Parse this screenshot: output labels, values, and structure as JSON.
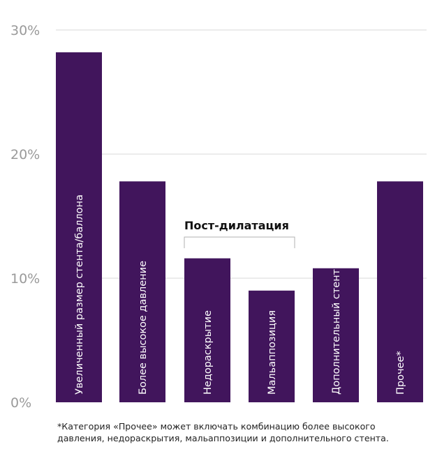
{
  "chart_data": {
    "type": "bar",
    "categories": [
      "Увеличенный размер стента/баллона",
      "Более высокое давление",
      "Недораскрытие",
      "Мальаппозиция",
      "Дополнительный стент",
      "Прочее*"
    ],
    "values": [
      28.2,
      17.8,
      11.6,
      9.0,
      10.8,
      17.8
    ],
    "ylim": [
      0,
      30
    ],
    "yticks": [
      {
        "value": 0,
        "label": "0%"
      },
      {
        "value": 10,
        "label": "10%"
      },
      {
        "value": 20,
        "label": "20%"
      },
      {
        "value": 30,
        "label": "30%"
      }
    ],
    "bar_color": "#41155c",
    "grid": true,
    "group_annotation": {
      "label": "Пост-дилатация",
      "from_category": 2,
      "to_category": 3
    },
    "title": "",
    "xlabel": "",
    "ylabel": ""
  },
  "footnote": "*Категория «Прочее» может включать комбинацию более высокого давления, недораскрытия, мальаппозиции и дополнительного стента."
}
